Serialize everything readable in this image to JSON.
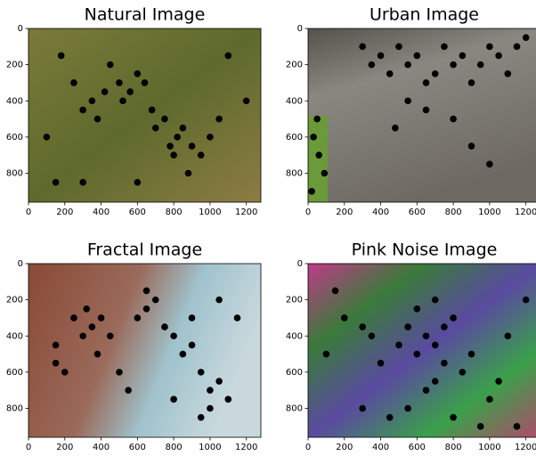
{
  "chart_data": [
    {
      "type": "scatter",
      "title": "Natural Image",
      "color": "#000000",
      "x": [
        100,
        180,
        250,
        300,
        350,
        380,
        420,
        450,
        500,
        520,
        560,
        600,
        640,
        680,
        700,
        750,
        780,
        800,
        820,
        850,
        880,
        900,
        950,
        1000,
        1050,
        1100,
        150,
        300,
        600,
        1200
      ],
      "values": [
        600,
        150,
        300,
        450,
        400,
        500,
        350,
        200,
        300,
        400,
        350,
        250,
        300,
        450,
        550,
        500,
        650,
        700,
        600,
        550,
        800,
        650,
        700,
        600,
        500,
        150,
        850,
        850,
        850,
        400
      ],
      "xlim": [
        0,
        1280
      ],
      "ylim": [
        960,
        0
      ],
      "xticks": [
        0,
        200,
        400,
        600,
        800,
        1000,
        1200
      ],
      "yticks": [
        0,
        200,
        400,
        600,
        800
      ]
    },
    {
      "type": "scatter",
      "title": "Urban Image",
      "color": "#000000",
      "x": [
        300,
        350,
        400,
        450,
        500,
        550,
        600,
        650,
        700,
        750,
        800,
        850,
        900,
        950,
        1000,
        1050,
        1100,
        1150,
        1200,
        550,
        650,
        480,
        30,
        60,
        90,
        50,
        20,
        800,
        900,
        1000
      ],
      "values": [
        100,
        200,
        150,
        250,
        100,
        200,
        150,
        300,
        250,
        100,
        200,
        150,
        300,
        200,
        100,
        150,
        250,
        100,
        50,
        400,
        450,
        550,
        600,
        700,
        800,
        500,
        900,
        500,
        650,
        750
      ],
      "xlim": [
        0,
        1280
      ],
      "ylim": [
        960,
        0
      ],
      "xticks": [
        0,
        200,
        400,
        600,
        800,
        1000,
        1200
      ],
      "yticks": [
        0,
        200,
        400,
        600,
        800
      ]
    },
    {
      "type": "scatter",
      "title": "Fractal Image",
      "color": "#000000",
      "x": [
        150,
        250,
        300,
        350,
        400,
        450,
        380,
        320,
        600,
        650,
        700,
        750,
        800,
        850,
        900,
        950,
        1000,
        1050,
        1100,
        1000,
        950,
        500,
        200,
        150,
        650,
        550,
        1150,
        900,
        800,
        1050
      ],
      "values": [
        450,
        300,
        400,
        350,
        300,
        400,
        500,
        250,
        300,
        250,
        200,
        350,
        400,
        500,
        450,
        600,
        700,
        650,
        750,
        800,
        850,
        600,
        600,
        550,
        150,
        700,
        300,
        300,
        750,
        200
      ],
      "xlim": [
        0,
        1280
      ],
      "ylim": [
        960,
        0
      ],
      "xticks": [
        0,
        200,
        400,
        600,
        800,
        1000,
        1200
      ],
      "yticks": [
        0,
        200,
        400,
        600,
        800
      ]
    },
    {
      "type": "scatter",
      "title": "Pink Noise Image",
      "color": "#000000",
      "x": [
        100,
        200,
        300,
        350,
        400,
        500,
        550,
        600,
        650,
        700,
        750,
        800,
        850,
        700,
        650,
        600,
        750,
        900,
        1000,
        1100,
        1200,
        300,
        450,
        800,
        950,
        1050,
        150,
        550,
        700,
        1150
      ],
      "values": [
        500,
        300,
        350,
        400,
        550,
        450,
        350,
        500,
        400,
        450,
        550,
        300,
        600,
        650,
        700,
        250,
        350,
        500,
        750,
        400,
        200,
        800,
        850,
        850,
        900,
        650,
        150,
        800,
        200,
        900
      ],
      "xlim": [
        0,
        1280
      ],
      "ylim": [
        960,
        0
      ],
      "xticks": [
        0,
        200,
        400,
        600,
        800,
        1000,
        1200
      ],
      "yticks": [
        0,
        200,
        400,
        600,
        800
      ]
    }
  ]
}
